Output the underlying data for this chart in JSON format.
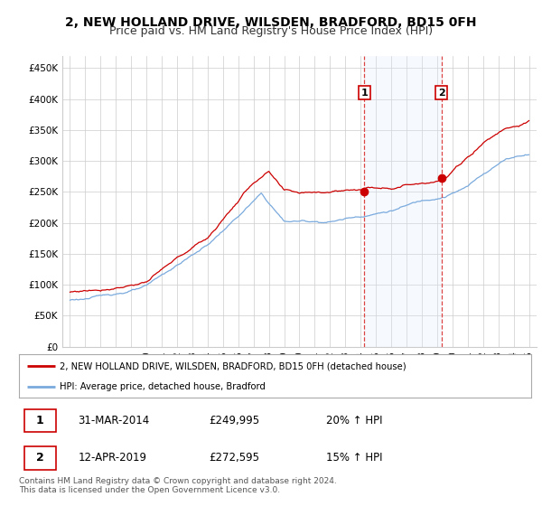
{
  "title": "2, NEW HOLLAND DRIVE, WILSDEN, BRADFORD, BD15 0FH",
  "subtitle": "Price paid vs. HM Land Registry's House Price Index (HPI)",
  "footer": "Contains HM Land Registry data © Crown copyright and database right 2024.\nThis data is licensed under the Open Government Licence v3.0.",
  "legend_line1": "2, NEW HOLLAND DRIVE, WILSDEN, BRADFORD, BD15 0FH (detached house)",
  "legend_line2": "HPI: Average price, detached house, Bradford",
  "sale1_date": "31-MAR-2014",
  "sale1_price": "£249,995",
  "sale1_info": "20% ↑ HPI",
  "sale2_date": "12-APR-2019",
  "sale2_price": "£272,595",
  "sale2_info": "15% ↑ HPI",
  "hpi_color": "#7aaadd",
  "hpi_fill_color": "#ddeeff",
  "price_color": "#cc0000",
  "sale1_x": 2014.25,
  "sale2_x": 2019.29,
  "sale1_y": 249995,
  "sale2_y": 272595,
  "ylim": [
    0,
    470000
  ],
  "xlim": [
    1994.5,
    2025.5
  ],
  "yticks": [
    0,
    50000,
    100000,
    150000,
    200000,
    250000,
    300000,
    350000,
    400000,
    450000
  ],
  "ytick_labels": [
    "£0",
    "£50K",
    "£100K",
    "£150K",
    "£200K",
    "£250K",
    "£300K",
    "£350K",
    "£400K",
    "£450K"
  ],
  "xticks": [
    1995,
    1996,
    1997,
    1998,
    1999,
    2000,
    2001,
    2002,
    2003,
    2004,
    2005,
    2006,
    2007,
    2008,
    2009,
    2010,
    2011,
    2012,
    2013,
    2014,
    2015,
    2016,
    2017,
    2018,
    2019,
    2020,
    2021,
    2022,
    2023,
    2024,
    2025
  ],
  "title_fontsize": 10,
  "subtitle_fontsize": 9,
  "axis_fontsize": 7.5,
  "background_color": "#ffffff",
  "grid_color": "#cccccc"
}
